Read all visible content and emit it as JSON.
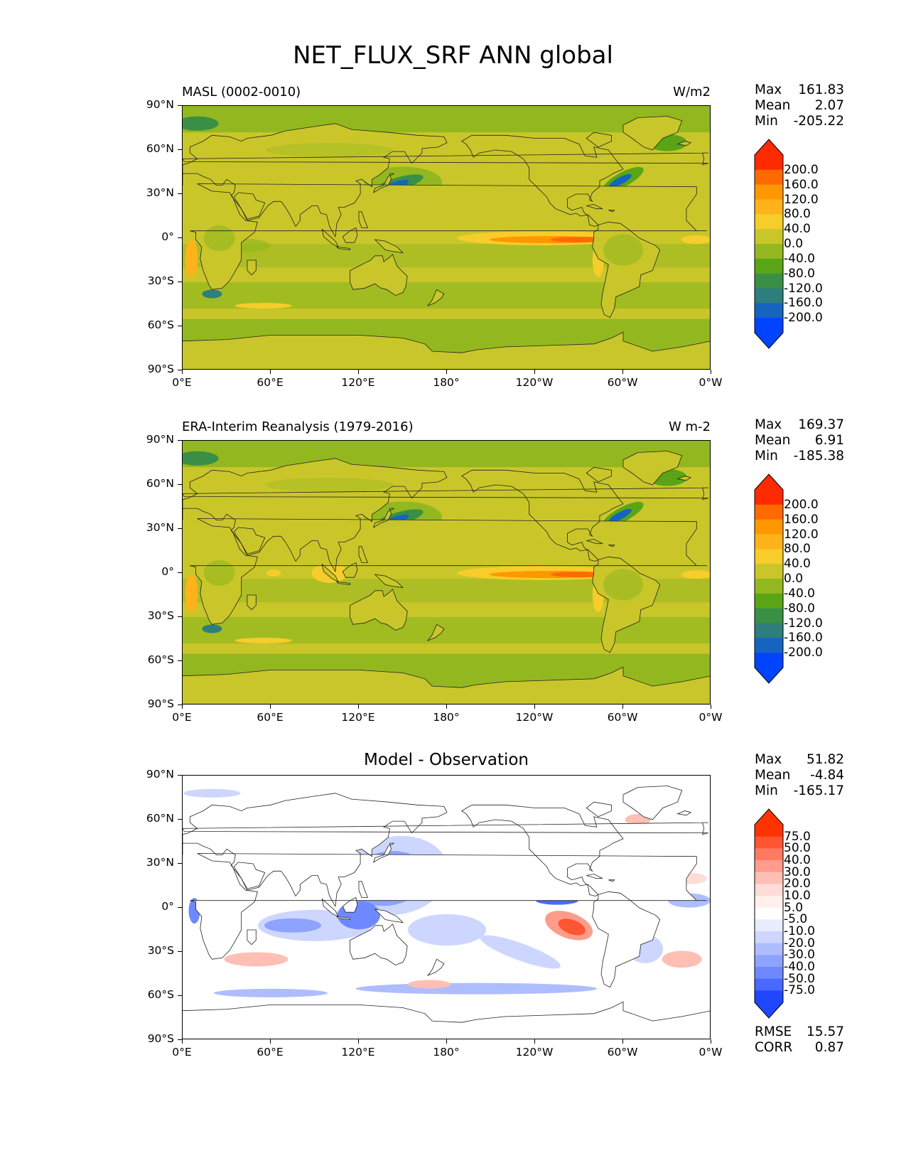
{
  "figure_title": "NET_FLUX_SRF ANN global",
  "panels": [
    {
      "left_title": "MASL (0002-0010)",
      "right_title": "W/m2",
      "stats": [
        [
          "Max",
          "161.83"
        ],
        [
          "Mean",
          "2.07"
        ],
        [
          "Min",
          "-205.22"
        ]
      ],
      "cbar_labels": [
        "200.0",
        "160.0",
        "120.0",
        "80.0",
        "40.0",
        "0.0",
        "-40.0",
        "-80.0",
        "-120.0",
        "-160.0",
        "-200.0"
      ]
    },
    {
      "left_title": "ERA-Interim Reanalysis (1979-2016)",
      "right_title": "W m-2",
      "stats": [
        [
          "Max",
          "169.37"
        ],
        [
          "Mean",
          "6.91"
        ],
        [
          "Min",
          "-185.38"
        ]
      ],
      "cbar_labels": [
        "200.0",
        "160.0",
        "120.0",
        "80.0",
        "40.0",
        "0.0",
        "-40.0",
        "-80.0",
        "-120.0",
        "-160.0",
        "-200.0"
      ]
    },
    {
      "center_title": "Model - Observation",
      "stats": [
        [
          "Max",
          "51.82"
        ],
        [
          "Mean",
          "-4.84"
        ],
        [
          "Min",
          "-165.17"
        ]
      ],
      "cbar_labels": [
        "75.0",
        "50.0",
        "40.0",
        "30.0",
        "20.0",
        "10.0",
        "5.0",
        "-5.0",
        "-10.0",
        "-20.0",
        "-30.0",
        "-40.0",
        "-50.0",
        "-75.0"
      ],
      "metrics": [
        [
          "RMSE",
          "15.57"
        ],
        [
          "CORR",
          "0.87"
        ]
      ]
    }
  ],
  "colors": {
    "abs_scale": [
      "#ff2a00",
      "#ff6a00",
      "#ff9800",
      "#ffb21a",
      "#f6cd2a",
      "#c9c62a",
      "#93b81f",
      "#5aa516",
      "#3a8f46",
      "#2e7e7e",
      "#1565c0",
      "#0044ff"
    ],
    "diff_scale": [
      "#ff3300",
      "#ff5533",
      "#ff7a60",
      "#ff9c8c",
      "#ffbfb5",
      "#ffdcd7",
      "#fff0ee",
      "#ffffff",
      "#e8ecff",
      "#cdd6ff",
      "#aebdff",
      "#8ea3ff",
      "#6e89ff",
      "#4a6aff",
      "#2047ff"
    ]
  },
  "chart_data": [
    {
      "type": "heatmap",
      "title": "MASL (0002-0010)",
      "units": "W/m2",
      "xlabel": "",
      "ylabel": "",
      "xlim": [
        0,
        360
      ],
      "ylim": [
        -90,
        90
      ],
      "x_ticks": [
        "0°E",
        "60°E",
        "120°E",
        "180°",
        "120°W",
        "60°W",
        "0°W"
      ],
      "y_ticks": [
        "90°N",
        "60°N",
        "30°N",
        "0°",
        "30°S",
        "60°S",
        "90°S"
      ],
      "levels": [
        -200,
        -160,
        -120,
        -80,
        -40,
        0,
        40,
        80,
        120,
        160,
        200
      ],
      "max": 161.83,
      "mean": 2.07,
      "min": -205.22
    },
    {
      "type": "heatmap",
      "title": "ERA-Interim Reanalysis (1979-2016)",
      "units": "W m-2",
      "xlabel": "",
      "ylabel": "",
      "xlim": [
        0,
        360
      ],
      "ylim": [
        -90,
        90
      ],
      "x_ticks": [
        "0°E",
        "60°E",
        "120°E",
        "180°",
        "120°W",
        "60°W",
        "0°W"
      ],
      "y_ticks": [
        "90°N",
        "60°N",
        "30°N",
        "0°",
        "30°S",
        "60°S",
        "90°S"
      ],
      "levels": [
        -200,
        -160,
        -120,
        -80,
        -40,
        0,
        40,
        80,
        120,
        160,
        200
      ],
      "max": 169.37,
      "mean": 6.91,
      "min": -185.38
    },
    {
      "type": "heatmap",
      "title": "Model - Observation",
      "xlabel": "",
      "ylabel": "",
      "xlim": [
        0,
        360
      ],
      "ylim": [
        -90,
        90
      ],
      "x_ticks": [
        "0°E",
        "60°E",
        "120°E",
        "180°",
        "120°W",
        "60°W",
        "0°W"
      ],
      "y_ticks": [
        "90°N",
        "60°N",
        "30°N",
        "0°",
        "30°S",
        "60°S",
        "90°S"
      ],
      "levels": [
        -75,
        -50,
        -40,
        -30,
        -20,
        -10,
        -5,
        5,
        10,
        20,
        30,
        40,
        50,
        75
      ],
      "max": 51.82,
      "mean": -4.84,
      "min": -165.17,
      "rmse": 15.57,
      "corr": 0.87
    }
  ]
}
